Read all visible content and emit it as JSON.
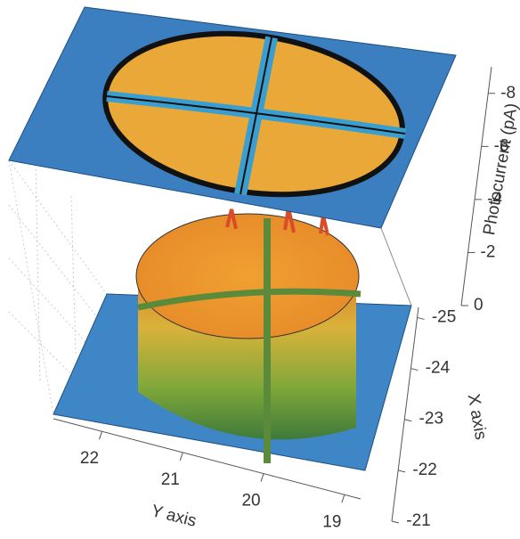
{
  "chart_data": {
    "type": "surface3d",
    "z_label": "Photocurrent (pA)",
    "x_label": "X axis",
    "y_label": "Y axis",
    "zlim": [
      0,
      -9
    ],
    "zticks": [
      0,
      -2,
      -4,
      -6,
      -8
    ],
    "xlim": [
      -25.2,
      -21
    ],
    "xticks": [
      -25,
      -24,
      -23,
      -22,
      -21
    ],
    "ylim": [
      22.6,
      18.8
    ],
    "yticks": [
      22,
      21,
      20,
      19
    ]
  }
}
